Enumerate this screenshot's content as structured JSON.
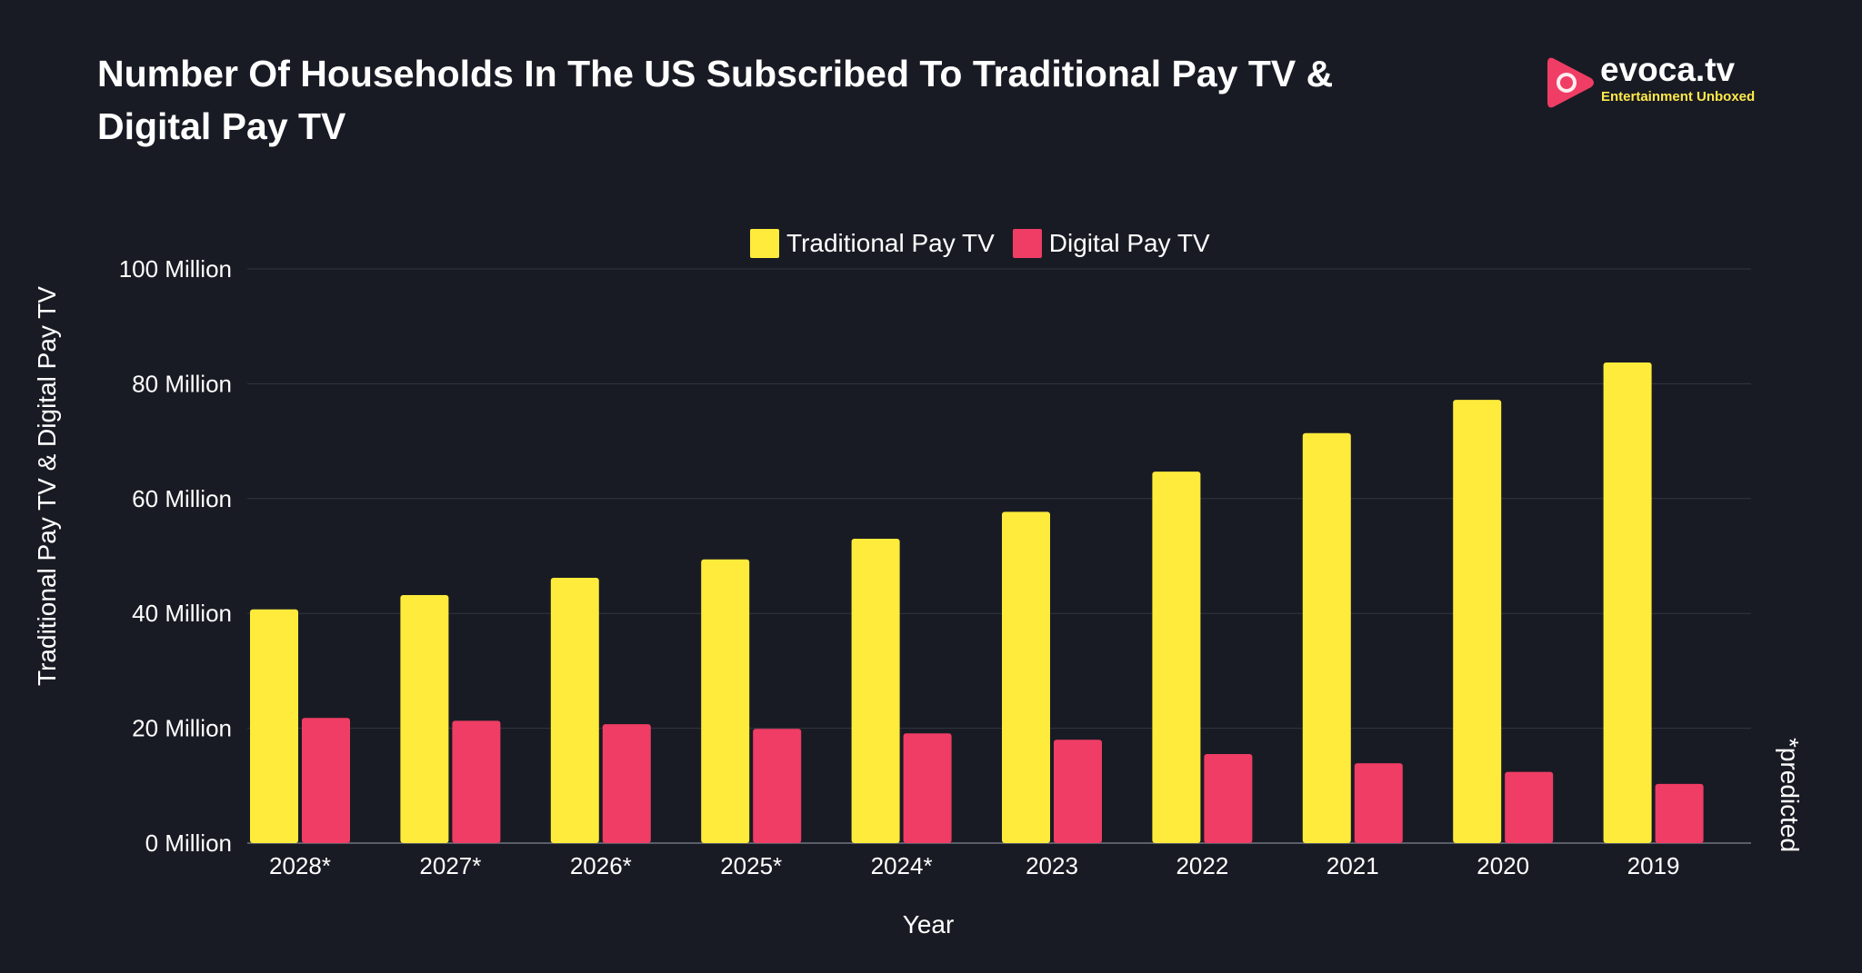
{
  "brand": {
    "name": "evoca.tv",
    "tagline": "Entertainment Unboxed",
    "color": "#f03d65"
  },
  "note": "*predicted",
  "chart_data": {
    "type": "bar",
    "title": "Number Of Households In The US Subscribed To Traditional Pay TV & Digital Pay TV",
    "xlabel": "Year",
    "ylabel": "Traditional Pay TV & Digital Pay TV",
    "categories": [
      "2028*",
      "2027*",
      "2026*",
      "2025*",
      "2024*",
      "2023",
      "2022",
      "2021",
      "2020",
      "2019"
    ],
    "series": [
      {
        "name": "Traditional Pay TV",
        "color": "#ffeb3b",
        "values": [
          40.7,
          43.2,
          46.2,
          49.4,
          53.0,
          57.7,
          64.7,
          71.4,
          77.2,
          83.7
        ]
      },
      {
        "name": "Digital Pay TV",
        "color": "#f03d65",
        "values": [
          21.8,
          21.3,
          20.7,
          19.9,
          19.1,
          18.0,
          15.5,
          13.9,
          12.4,
          10.3
        ]
      }
    ],
    "ylim": [
      0,
      100
    ],
    "yticks": [
      {
        "value": 0,
        "label": "0 Million"
      },
      {
        "value": 20,
        "label": "20 Million"
      },
      {
        "value": 40,
        "label": "40 Million"
      },
      {
        "value": 60,
        "label": "60 Million"
      },
      {
        "value": 80,
        "label": "80 Million"
      },
      {
        "value": 100,
        "label": "100 Million"
      }
    ],
    "grid": true,
    "legend_position": "top-center"
  }
}
